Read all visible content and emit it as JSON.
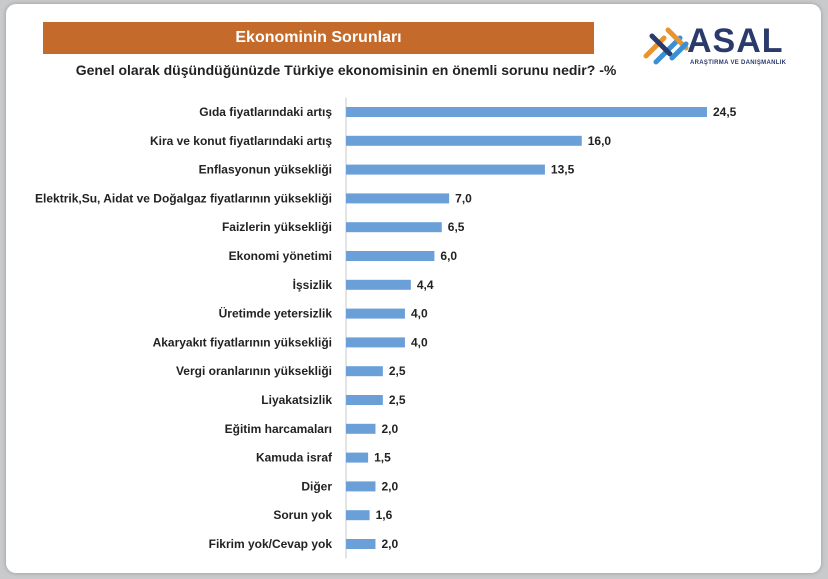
{
  "header": {
    "title": "Ekonominin Sorunları",
    "subtitle": "Genel olarak düşündüğünüzde Türkiye ekonomisinin en önemli sorunu nedir? -%"
  },
  "logo": {
    "name": "ASAL",
    "tagline": "ARAŞTIRMA VE DANIŞMANLIK",
    "colors": [
      "#e8952f",
      "#3a8fd6",
      "#2a3a6b"
    ]
  },
  "chart_data": {
    "type": "bar",
    "orientation": "horizontal",
    "title": "Ekonominin Sorunları",
    "subtitle": "Genel olarak düşündüğünüzde Türkiye ekonomisinin en önemli sorunu nedir? -%",
    "categories": [
      "Gıda fiyatlarındaki artış",
      "Kira ve konut fiyatlarındaki artış",
      "Enflasyonun yüksekliği",
      "Elektrik,Su, Aidat ve Doğalgaz fiyatlarının yüksekliği",
      "Faizlerin yüksekliği",
      "Ekonomi yönetimi",
      "İşsizlik",
      "Üretimde yetersizlik",
      "Akaryakıt fiyatlarının yüksekliği",
      "Vergi oranlarının yüksekliği",
      "Liyakatsizlik",
      "Eğitim harcamaları",
      "Kamuda israf",
      "Diğer",
      "Sorun yok",
      "Fikrim yok/Cevap yok"
    ],
    "values": [
      24.5,
      16.0,
      13.5,
      7.0,
      6.5,
      6.0,
      4.4,
      4.0,
      4.0,
      2.5,
      2.5,
      2.0,
      1.5,
      2.0,
      1.6,
      2.0
    ],
    "value_labels": [
      "24,5",
      "16,0",
      "13,5",
      "7,0",
      "6,5",
      "6,0",
      "4,4",
      "4,0",
      "4,0",
      "2,5",
      "2,5",
      "2,0",
      "1,5",
      "2,0",
      "1,6",
      "2,0"
    ],
    "xlim": [
      0,
      24.5
    ],
    "bar_color": "#6a9fd8",
    "grid": false,
    "legend": "none"
  }
}
